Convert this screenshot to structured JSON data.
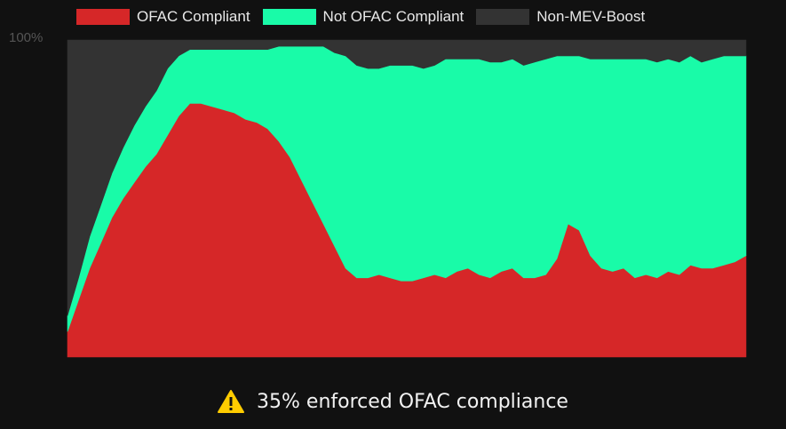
{
  "chart_data": {
    "type": "area",
    "stacked": true,
    "normalized_percent": true,
    "ylim": [
      0,
      100
    ],
    "y_tick_labels": [
      "100%"
    ],
    "series": [
      {
        "name": "OFAC Compliant",
        "color": "#d62728",
        "values": [
          8,
          18,
          28,
          36,
          44,
          50,
          55,
          60,
          64,
          70,
          76,
          80,
          80,
          79,
          78,
          77,
          75,
          74,
          72,
          68,
          63,
          56,
          49,
          42,
          35,
          28,
          25,
          25,
          26,
          25,
          24,
          24,
          25,
          26,
          25,
          27,
          28,
          26,
          25,
          27,
          28,
          25,
          25,
          26,
          31,
          42,
          40,
          32,
          28,
          27,
          28,
          25,
          26,
          25,
          27,
          26,
          29,
          28,
          28,
          29,
          30,
          32
        ]
      },
      {
        "name": "Not OFAC Compliant",
        "color": "#19fba8",
        "values": [
          5,
          7,
          10,
          12,
          14,
          16,
          18,
          19,
          20,
          21,
          19,
          17,
          17,
          18,
          19,
          20,
          22,
          23,
          25,
          30,
          35,
          42,
          49,
          56,
          61,
          67,
          67,
          66,
          65,
          67,
          68,
          68,
          66,
          66,
          69,
          67,
          66,
          68,
          68,
          66,
          66,
          67,
          68,
          68,
          64,
          53,
          55,
          62,
          66,
          67,
          66,
          69,
          68,
          68,
          67,
          67,
          66,
          65,
          66,
          66,
          65,
          63
        ]
      },
      {
        "name": "Non-MEV-Boost",
        "color": "#333333",
        "values": [
          87,
          75,
          62,
          52,
          42,
          34,
          27,
          21,
          16,
          9,
          5,
          3,
          3,
          3,
          3,
          3,
          3,
          3,
          3,
          2,
          2,
          2,
          2,
          2,
          4,
          5,
          8,
          9,
          9,
          8,
          8,
          8,
          9,
          8,
          6,
          6,
          6,
          6,
          7,
          7,
          6,
          8,
          7,
          6,
          5,
          5,
          5,
          6,
          6,
          6,
          6,
          6,
          6,
          7,
          6,
          7,
          5,
          7,
          6,
          5,
          5,
          5
        ]
      }
    ],
    "legend_position": "top",
    "grid": false,
    "annotation": "35% enforced OFAC compliance",
    "annotation_icon": "warning-icon"
  }
}
